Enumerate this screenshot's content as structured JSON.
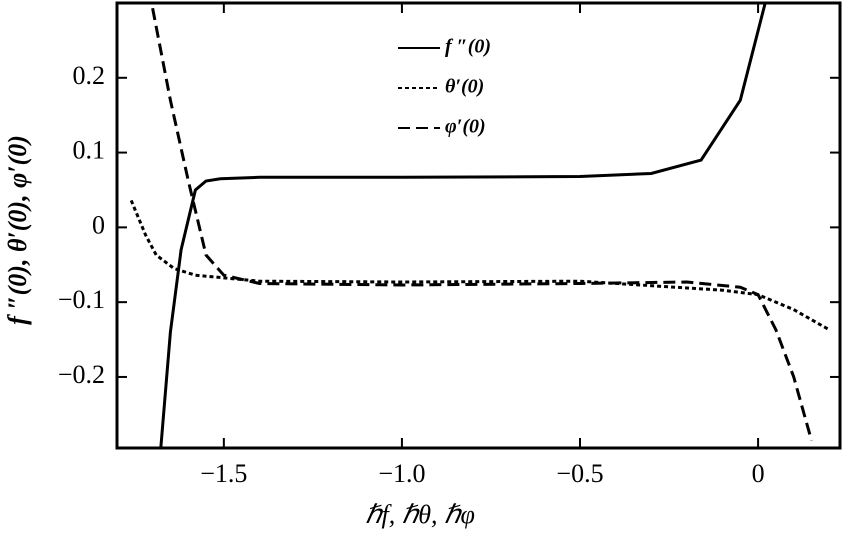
{
  "chart_data": {
    "type": "line",
    "xlabel": "ℏf, ℏθ, ℏφ",
    "ylabel": "f ″(0),  θ′(0),  φ′(0)",
    "xlim": [
      -1.8,
      0.23
    ],
    "ylim": [
      -0.295,
      0.3
    ],
    "xticks": [
      {
        "value": -1.5,
        "label": "−1.5"
      },
      {
        "value": -1.0,
        "label": "−1.0"
      },
      {
        "value": -0.5,
        "label": "−0.5"
      },
      0
    ],
    "yticks": [
      {
        "value": -0.2,
        "label": "−0.2"
      },
      {
        "value": -0.1,
        "label": "−0.1"
      },
      0,
      0.1,
      0.2
    ],
    "series": [
      {
        "name": "f ″(0)",
        "color": "#000000",
        "dash": "none",
        "x": [
          -1.677,
          -1.65,
          -1.62,
          -1.58,
          -1.55,
          -1.51,
          -1.4,
          -1.0,
          -0.5,
          -0.3,
          -0.16,
          -0.05,
          0.02
        ],
        "values": [
          -0.295,
          -0.14,
          -0.03,
          0.05,
          0.062,
          0.065,
          0.067,
          0.067,
          0.068,
          0.072,
          0.09,
          0.17,
          0.3
        ]
      },
      {
        "name": "θ′(0)",
        "color": "#000000",
        "dash": "4,3",
        "x": [
          -1.76,
          -1.72,
          -1.69,
          -1.64,
          -1.58,
          -1.4,
          -1.0,
          -0.5,
          -0.1,
          0.0,
          0.1,
          0.2
        ],
        "values": [
          0.036,
          -0.01,
          -0.037,
          -0.055,
          -0.064,
          -0.072,
          -0.073,
          -0.072,
          -0.084,
          -0.09,
          -0.11,
          -0.137
        ]
      },
      {
        "name": "φ′(0)",
        "color": "#000000",
        "dash": "12,6",
        "x": [
          -1.7,
          -1.65,
          -1.6,
          -1.55,
          -1.5,
          -1.4,
          -1.0,
          -0.5,
          -0.2,
          -0.05,
          0.0,
          0.05,
          0.1,
          0.15
        ],
        "values": [
          0.293,
          0.17,
          0.063,
          -0.037,
          -0.064,
          -0.075,
          -0.077,
          -0.075,
          -0.073,
          -0.08,
          -0.09,
          -0.137,
          -0.2,
          -0.285
        ]
      }
    ]
  }
}
